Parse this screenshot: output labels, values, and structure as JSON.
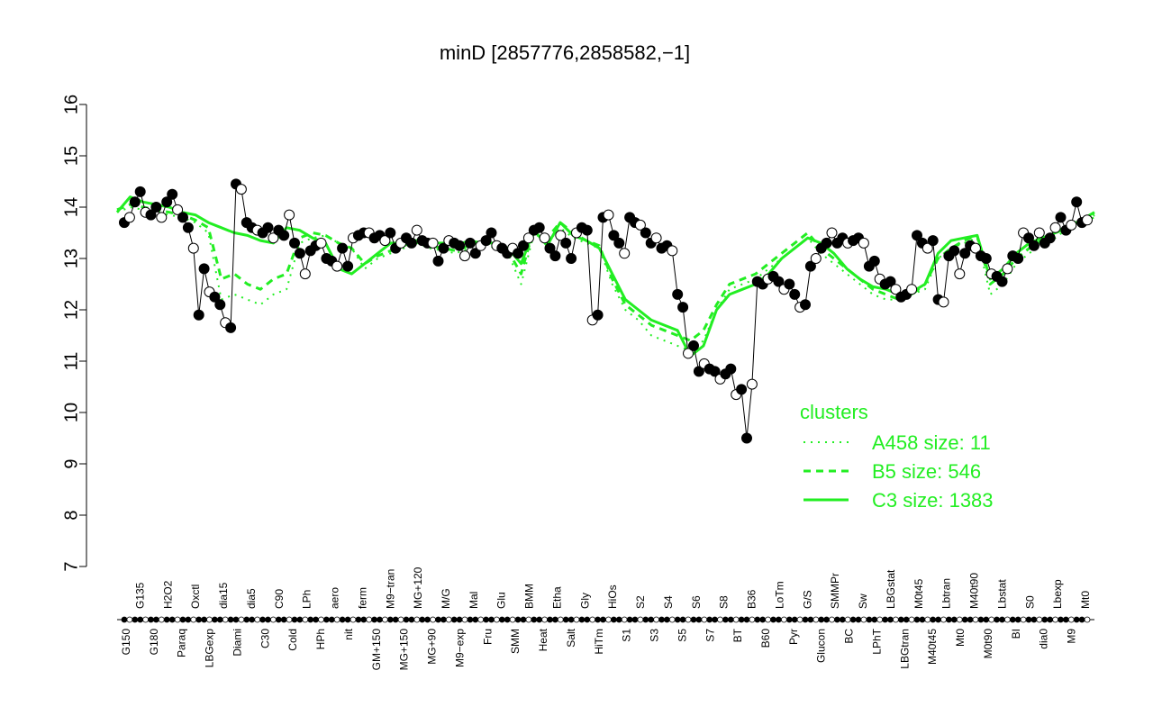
{
  "chart_data": {
    "type": "line",
    "title": "minD [2857776,2858582,−1]",
    "xlabel": "",
    "ylabel": "",
    "ylim": [
      7,
      16
    ],
    "yticks": [
      7,
      8,
      9,
      10,
      11,
      12,
      13,
      14,
      15,
      16
    ],
    "xticklabels": [
      "G150",
      "G135",
      "G180",
      "H2O2",
      "Paraq",
      "Oxctl",
      "LBGexp",
      "dia15",
      "Diami",
      "dia5",
      "C30",
      "C90",
      "Cold",
      "LPh",
      "HPh",
      "aero",
      "nit",
      "ferm",
      "GM+150",
      "M9−tran",
      "MG+150",
      "MG+120",
      "MG+90",
      "M/G",
      "M9−exp",
      "Mal",
      "Fru",
      "Glu",
      "SMM",
      "BMM",
      "Heat",
      "Etha",
      "Salt",
      "Gly",
      "HiTm",
      "HiOs",
      "S1",
      "S2",
      "S3",
      "S4",
      "S5",
      "S6",
      "S7",
      "S8",
      "BT",
      "B36",
      "B60",
      "LoTm",
      "Pyr",
      "G/S",
      "Glucon",
      "SMMPr",
      "BC",
      "Sw",
      "LPhT",
      "LBGstat",
      "LBGtran",
      "M0t45",
      "M40t45",
      "Lbtran",
      "Mt0",
      "M40t90",
      "M0t90",
      "Lbstat",
      "BI",
      "S0",
      "dia0",
      "Lbexp",
      "M9",
      "Mt0"
    ],
    "legend": {
      "title": "clusters",
      "position": "right",
      "entries": [
        {
          "label": "A458 size: 11",
          "style": "dotted"
        },
        {
          "label": "B5 size: 546",
          "style": "dashed"
        },
        {
          "label": "C3 size: 1383",
          "style": "solid"
        }
      ]
    },
    "colors": {
      "cluster_lines": "#22ee22",
      "points": "#000000",
      "text_legend": "#22ee22"
    },
    "series": [
      {
        "name": "",
        "kind": "points",
        "values": [
          13.7,
          13.8,
          14.1,
          14.3,
          13.9,
          13.85,
          14.0,
          13.8,
          14.1,
          14.25,
          13.95,
          13.8,
          13.6,
          13.2,
          11.9,
          12.8,
          12.35,
          12.25,
          12.1,
          11.75,
          11.65,
          14.45,
          14.35,
          13.7,
          13.6,
          13.55,
          13.5,
          13.6,
          13.4,
          13.55,
          13.45,
          13.85,
          13.3,
          13.1,
          12.7,
          13.15,
          13.25,
          13.3,
          13.0,
          12.95,
          12.85,
          13.2,
          12.85,
          13.4,
          13.45,
          13.5,
          13.5,
          13.4,
          13.45,
          13.35,
          13.5,
          13.2,
          13.3,
          13.4,
          13.3,
          13.55,
          13.35,
          13.3,
          13.3,
          12.95,
          13.2,
          13.35,
          13.3,
          13.25,
          13.05,
          13.3,
          13.1,
          13.25,
          13.35,
          13.5,
          13.25,
          13.2,
          13.1,
          13.2,
          13.1,
          13.25,
          13.4,
          13.55,
          13.6,
          13.4,
          13.2,
          13.05,
          13.45,
          13.3,
          13.0,
          13.5,
          13.6,
          13.55,
          11.8,
          11.9,
          13.8,
          13.85,
          13.45,
          13.3,
          13.1,
          13.8,
          13.7,
          13.65,
          13.5,
          13.3,
          13.4,
          13.2,
          13.25,
          13.15,
          12.3,
          12.05,
          11.15,
          11.3,
          10.8,
          10.95,
          10.85,
          10.8,
          10.65,
          10.75,
          10.85,
          10.35,
          10.45,
          9.5,
          10.55,
          12.55,
          12.5,
          12.6,
          12.65,
          12.55,
          12.4,
          12.5,
          12.3,
          12.05,
          12.1,
          12.85,
          13.0,
          13.2,
          13.3,
          13.5,
          13.3,
          13.4,
          13.3,
          13.35,
          13.4,
          13.3,
          12.85,
          12.95,
          12.6,
          12.5,
          12.55,
          12.4,
          12.25,
          12.3,
          12.4,
          13.45,
          13.3,
          13.2,
          13.35,
          12.2,
          12.15,
          13.05,
          13.15,
          12.7,
          13.1,
          13.25,
          13.2,
          13.05,
          13.0,
          12.7,
          12.65,
          12.55,
          12.8,
          13.05,
          13.0,
          13.5,
          13.4,
          13.25,
          13.5,
          13.3,
          13.4,
          13.6,
          13.8,
          13.55,
          13.65,
          14.1,
          13.7,
          13.75
        ]
      },
      {
        "name": "A458 size: 11",
        "kind": "line",
        "style": "dotted",
        "values": [
          13.9,
          14.0,
          13.95,
          13.9,
          13.85,
          13.8,
          13.7,
          13.5,
          12.2,
          12.3,
          12.2,
          12.1,
          12.3,
          12.4,
          13.3,
          13.4,
          13.45,
          13.3,
          13.2,
          12.8,
          13.0,
          13.1,
          13.2,
          13.3,
          13.2,
          13.15,
          13.1,
          13.2,
          13.3,
          13.2,
          13.1,
          12.5,
          13.5,
          13.3,
          13.6,
          13.4,
          13.3,
          13.2,
          12.5,
          12.0,
          11.8,
          11.5,
          11.4,
          11.3,
          11.2,
          11.4,
          12.0,
          12.4,
          12.5,
          12.6,
          12.8,
          13.0,
          13.2,
          13.4,
          13.1,
          12.9,
          12.7,
          12.5,
          12.3,
          12.2,
          12.2,
          12.3,
          12.4,
          13.0,
          13.2,
          13.3,
          13.4,
          12.3,
          12.5,
          12.9,
          13.1,
          13.3,
          13.4,
          13.6,
          13.7,
          13.8
        ]
      },
      {
        "name": "B5 size: 546",
        "kind": "line",
        "style": "dashed",
        "values": [
          13.95,
          14.05,
          14.0,
          13.95,
          13.9,
          13.85,
          13.75,
          13.6,
          12.6,
          12.7,
          12.5,
          12.4,
          12.6,
          12.7,
          13.4,
          13.5,
          13.45,
          13.3,
          13.2,
          12.9,
          13.05,
          13.15,
          13.25,
          13.35,
          13.25,
          13.2,
          13.15,
          13.25,
          13.35,
          13.25,
          13.15,
          12.7,
          13.6,
          13.4,
          13.7,
          13.5,
          13.35,
          13.25,
          12.6,
          12.1,
          11.9,
          11.7,
          11.6,
          11.5,
          11.4,
          11.6,
          12.1,
          12.5,
          12.6,
          12.7,
          12.9,
          13.1,
          13.3,
          13.5,
          13.2,
          13.0,
          12.8,
          12.6,
          12.4,
          12.3,
          12.2,
          12.3,
          12.5,
          13.0,
          13.2,
          13.35,
          13.45,
          12.5,
          12.7,
          13.0,
          13.2,
          13.35,
          13.5,
          13.65,
          13.75,
          13.85
        ]
      },
      {
        "name": "C3 size: 1383",
        "kind": "line",
        "style": "solid",
        "values": [
          13.9,
          14.2,
          14.1,
          14.05,
          14.0,
          13.9,
          13.85,
          13.7,
          13.6,
          13.5,
          13.45,
          13.35,
          13.3,
          13.6,
          13.55,
          13.4,
          13.3,
          12.8,
          12.7,
          12.9,
          13.1,
          13.3,
          13.3,
          13.35,
          13.3,
          13.3,
          13.25,
          13.35,
          13.3,
          13.3,
          13.2,
          12.9,
          13.55,
          13.25,
          13.7,
          13.45,
          13.35,
          13.2,
          12.7,
          12.2,
          12.0,
          11.8,
          11.7,
          11.6,
          11.1,
          11.3,
          12.0,
          12.3,
          12.4,
          12.5,
          12.7,
          13.0,
          13.2,
          13.4,
          13.3,
          13.1,
          12.8,
          12.6,
          12.45,
          12.4,
          12.3,
          12.35,
          12.5,
          13.1,
          13.35,
          13.4,
          13.45,
          12.6,
          12.8,
          13.1,
          13.3,
          13.4,
          13.5,
          13.6,
          13.75,
          13.9
        ]
      }
    ]
  }
}
